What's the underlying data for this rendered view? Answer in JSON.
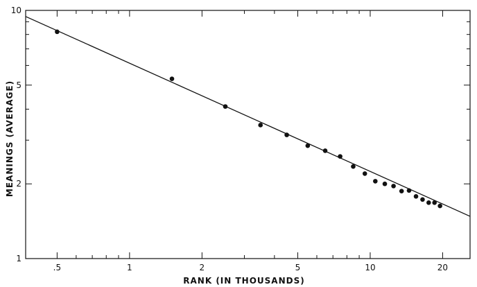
{
  "chart_data": {
    "type": "scatter",
    "title": "",
    "xlabel": "RANK (IN THOUSANDS)",
    "ylabel": "MEANINGS (AVERAGE)",
    "xscale": "log",
    "yscale": "log",
    "xlim": [
      0.37,
      26
    ],
    "ylim": [
      1,
      10
    ],
    "grid": false,
    "legend": "none",
    "x_ticks": [
      {
        "value": 0.5,
        "label": ".5"
      },
      {
        "value": 1,
        "label": "1"
      },
      {
        "value": 2,
        "label": "2"
      },
      {
        "value": 5,
        "label": "5"
      },
      {
        "value": 10,
        "label": "10"
      },
      {
        "value": 20,
        "label": "20"
      }
    ],
    "x_minor_ticks": [
      0.6,
      0.7,
      0.8,
      0.9,
      3,
      4,
      6,
      7,
      8,
      9
    ],
    "y_ticks": [
      {
        "value": 1,
        "label": "1"
      },
      {
        "value": 2,
        "label": "2"
      },
      {
        "value": 5,
        "label": "5"
      },
      {
        "value": 10,
        "label": "10"
      }
    ],
    "y_minor_ticks": [
      3,
      4,
      6,
      7,
      8,
      9
    ],
    "points": {
      "x": [
        0.5,
        1.5,
        2.5,
        3.5,
        4.5,
        5.5,
        6.5,
        7.5,
        8.5,
        9.5,
        10.5,
        11.5,
        12.5,
        13.5,
        14.5,
        15.5,
        16.5,
        17.5,
        18.5,
        19.5
      ],
      "y": [
        8.2,
        5.3,
        4.1,
        3.45,
        3.15,
        2.85,
        2.72,
        2.58,
        2.35,
        2.2,
        2.05,
        2.0,
        1.96,
        1.87,
        1.88,
        1.78,
        1.73,
        1.68,
        1.68,
        1.63
      ]
    },
    "fit_line": {
      "x": [
        0.37,
        26
      ],
      "y": [
        9.45,
        1.48
      ]
    }
  }
}
